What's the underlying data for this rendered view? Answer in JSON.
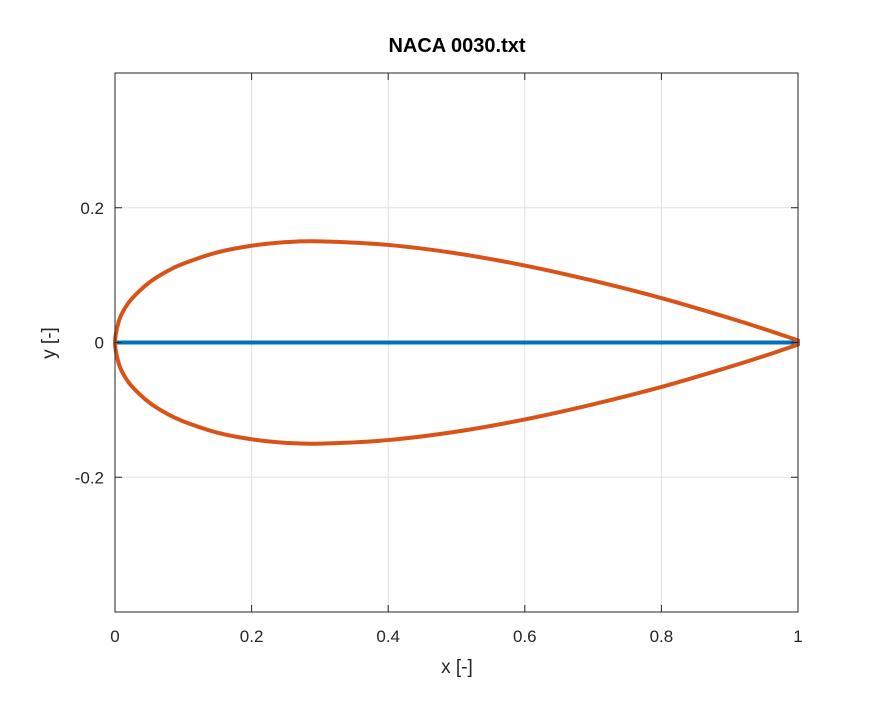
{
  "chart_data": {
    "type": "line",
    "title": "NACA 0030.txt",
    "xlabel": "x [-]",
    "ylabel": "y [-]",
    "xlim": [
      0,
      1
    ],
    "ylim": [
      -0.4,
      0.4
    ],
    "xticks": [
      0,
      0.2,
      0.4,
      0.6,
      0.8,
      1
    ],
    "xtick_labels": [
      "0",
      "0.2",
      "0.4",
      "0.6",
      "0.8",
      "1"
    ],
    "yticks": [
      -0.2,
      0,
      0.2
    ],
    "ytick_labels": [
      "-0.2",
      "0",
      "0.2"
    ],
    "grid": true,
    "series": [
      {
        "color": "#0072BD",
        "x": [
          0,
          0.1,
          0.2,
          0.3,
          0.4,
          0.5,
          0.6,
          0.7,
          0.8,
          0.9,
          1.0
        ],
        "y": [
          0,
          0,
          0,
          0,
          0,
          0,
          0,
          0,
          0,
          0,
          0
        ]
      },
      {
        "color": "#D95319",
        "x": [
          1.0,
          0.95,
          0.9,
          0.8,
          0.7,
          0.6,
          0.5,
          0.4,
          0.3,
          0.25,
          0.2,
          0.15,
          0.1,
          0.075,
          0.05,
          0.025,
          0.0125,
          0.005,
          0.0,
          0.005,
          0.0125,
          0.025,
          0.05,
          0.075,
          0.1,
          0.15,
          0.2,
          0.25,
          0.3,
          0.4,
          0.5,
          0.6,
          0.7,
          0.8,
          0.9,
          0.95,
          1.0
        ],
        "y": [
          0.0032,
          0.0202,
          0.0362,
          0.066,
          0.0917,
          0.1142,
          0.1323,
          0.1448,
          0.1501,
          0.1489,
          0.1436,
          0.1338,
          0.117,
          0.1051,
          0.089,
          0.0654,
          0.0474,
          0.0296,
          0.0,
          -0.0296,
          -0.0474,
          -0.0654,
          -0.089,
          -0.1051,
          -0.117,
          -0.1338,
          -0.1436,
          -0.1489,
          -0.1501,
          -0.1448,
          -0.1323,
          -0.1142,
          -0.0917,
          -0.066,
          -0.0362,
          -0.0202,
          -0.0032
        ]
      }
    ]
  }
}
